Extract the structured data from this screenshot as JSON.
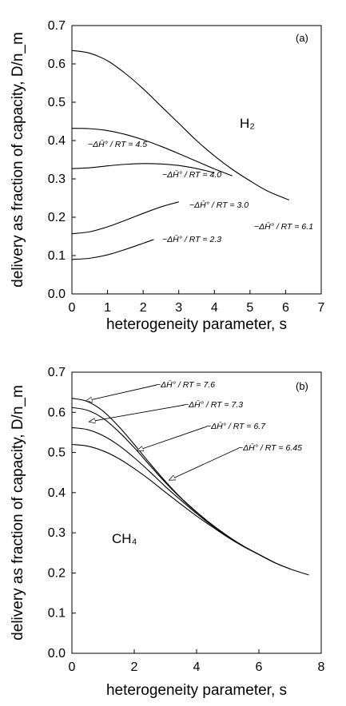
{
  "chart_data": [
    {
      "type": "line",
      "panel_label": "(a)",
      "gas_label": "H₂",
      "xlabel": "heterogeneity parameter, s",
      "ylabel": "delivery as fraction of capacity, D/n_m",
      "xlim": [
        0,
        7
      ],
      "ylim": [
        0,
        0.7
      ],
      "xticks": [
        "0",
        "1",
        "2",
        "3",
        "4",
        "5",
        "6",
        "7"
      ],
      "yticks": [
        "0.0",
        "0.1",
        "0.2",
        "0.3",
        "0.4",
        "0.5",
        "0.6",
        "0.7"
      ],
      "series": [
        {
          "name": "−ΔH̄° / RT = 6.1",
          "x": [
            0,
            0.5,
            1,
            1.5,
            2,
            2.5,
            3,
            3.5,
            4,
            4.5,
            5,
            5.5,
            6.1
          ],
          "y": [
            0.635,
            0.628,
            0.608,
            0.575,
            0.535,
            0.49,
            0.445,
            0.4,
            0.36,
            0.325,
            0.295,
            0.268,
            0.245
          ]
        },
        {
          "name": "−ΔH̄° / RT = 4.5",
          "x": [
            0,
            0.5,
            1,
            1.5,
            2,
            2.5,
            3,
            3.5,
            4,
            4.5
          ],
          "y": [
            0.432,
            0.431,
            0.426,
            0.416,
            0.402,
            0.385,
            0.366,
            0.346,
            0.326,
            0.308
          ]
        },
        {
          "name": "−ΔH̄° / RT = 4.0",
          "x": [
            0,
            0.5,
            1,
            1.5,
            2,
            2.5,
            3,
            3.5,
            4
          ],
          "y": [
            0.327,
            0.329,
            0.334,
            0.338,
            0.34,
            0.339,
            0.335,
            0.327,
            0.316
          ]
        },
        {
          "name": "−ΔH̄° / RT = 3.0",
          "x": [
            0,
            0.5,
            1,
            1.5,
            2,
            2.5,
            3
          ],
          "y": [
            0.157,
            0.162,
            0.175,
            0.192,
            0.21,
            0.227,
            0.24
          ]
        },
        {
          "name": "−ΔH̄° / RT = 2.3",
          "x": [
            0,
            0.5,
            1,
            1.5,
            2,
            2.3
          ],
          "y": [
            0.09,
            0.093,
            0.102,
            0.116,
            0.132,
            0.142
          ]
        }
      ]
    },
    {
      "type": "line",
      "panel_label": "(b)",
      "gas_label": "CH₄",
      "xlabel": "heterogeneity parameter, s",
      "ylabel": "delivery as fraction of capacity, D/n_m",
      "xlim": [
        0,
        8
      ],
      "ylim": [
        0,
        0.7
      ],
      "xticks": [
        "0",
        "2",
        "4",
        "6",
        "8"
      ],
      "yticks": [
        "0.0",
        "0.1",
        "0.2",
        "0.3",
        "0.4",
        "0.5",
        "0.6",
        "0.7"
      ],
      "series": [
        {
          "name": "−ΔH̄° / RT = 7.6",
          "x": [
            0,
            0.5,
            1,
            1.5,
            2,
            2.5,
            3,
            3.5,
            4,
            4.5,
            5,
            5.5,
            6,
            6.5,
            7,
            7.6
          ],
          "y": [
            0.635,
            0.627,
            0.603,
            0.565,
            0.52,
            0.473,
            0.428,
            0.387,
            0.352,
            0.32,
            0.292,
            0.267,
            0.246,
            0.226,
            0.21,
            0.195
          ]
        },
        {
          "name": "−ΔH̄° / RT = 7.3",
          "x": [
            0,
            0.5,
            1,
            1.5,
            2,
            2.5,
            3,
            3.5,
            4,
            4.5,
            5,
            5.5,
            6,
            6.5,
            7
          ],
          "y": [
            0.612,
            0.605,
            0.585,
            0.552,
            0.512,
            0.468,
            0.425,
            0.386,
            0.351,
            0.32,
            0.292,
            0.267,
            0.246,
            0.226,
            0.21
          ]
        },
        {
          "name": "−ΔH̄° / RT = 6.7",
          "x": [
            0,
            0.5,
            1,
            1.5,
            2,
            2.5,
            3,
            3.5,
            4,
            4.5,
            5,
            5.5,
            6,
            6.5
          ],
          "y": [
            0.562,
            0.557,
            0.542,
            0.518,
            0.487,
            0.452,
            0.415,
            0.381,
            0.348,
            0.318,
            0.291,
            0.267,
            0.246,
            0.226
          ]
        },
        {
          "name": "−ΔH̄° / RT = 6.45",
          "x": [
            0,
            0.5,
            1,
            1.5,
            2,
            2.5,
            3,
            3.5,
            4,
            4.5,
            5,
            5.5,
            6,
            6.5
          ],
          "y": [
            0.52,
            0.516,
            0.504,
            0.485,
            0.46,
            0.432,
            0.401,
            0.371,
            0.342,
            0.315,
            0.289,
            0.266,
            0.246,
            0.226
          ]
        }
      ]
    }
  ]
}
